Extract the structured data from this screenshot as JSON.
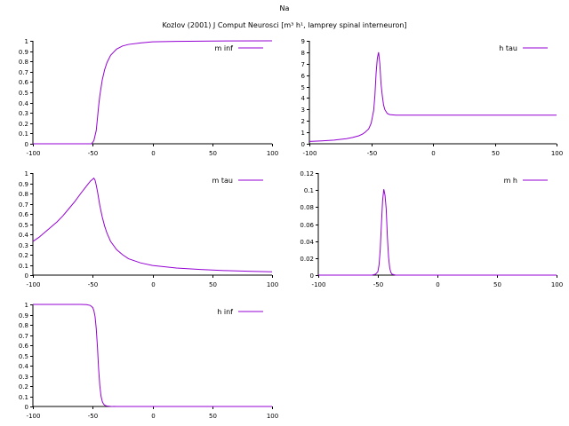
{
  "figure": {
    "title": "Na",
    "subtitle": "Kozlov (2001) J Comput Neurosci [m³ h¹, lamprey spinal interneuron]",
    "line_color": "#9400d3"
  },
  "chart_data": [
    {
      "type": "line",
      "series": [
        {
          "name": "m inf"
        }
      ],
      "xlim": [
        -100,
        100
      ],
      "ylim": [
        0,
        1
      ],
      "xticks": [
        -100,
        -50,
        0,
        50,
        100
      ],
      "yticks": [
        0,
        0.1,
        0.2,
        0.3,
        0.4,
        0.5,
        0.6,
        0.7,
        0.8,
        0.9,
        1
      ],
      "x": [
        -100,
        -55,
        -51,
        -49,
        -47,
        -45,
        -44,
        -42,
        -40,
        -38,
        -35,
        -30,
        -25,
        -20,
        -10,
        0,
        20,
        50,
        100
      ],
      "y": [
        0,
        0,
        0,
        0.03,
        0.13,
        0.37,
        0.47,
        0.62,
        0.72,
        0.79,
        0.86,
        0.92,
        0.95,
        0.965,
        0.98,
        0.99,
        0.995,
        0.998,
        1
      ]
    },
    {
      "type": "line",
      "series": [
        {
          "name": "h tau"
        }
      ],
      "xlim": [
        -100,
        100
      ],
      "ylim": [
        0,
        9
      ],
      "xticks": [
        -100,
        -50,
        0,
        50,
        100
      ],
      "yticks": [
        0,
        1,
        2,
        3,
        4,
        5,
        6,
        7,
        8,
        9
      ],
      "x": [
        -100,
        -90,
        -80,
        -70,
        -65,
        -60,
        -57,
        -55,
        -52,
        -50,
        -48,
        -47,
        -46,
        -45,
        -44,
        -43,
        -42,
        -41,
        -40,
        -39,
        -37,
        -35,
        -30,
        -20,
        0,
        50,
        100
      ],
      "y": [
        0.2,
        0.25,
        0.32,
        0.45,
        0.55,
        0.7,
        0.85,
        1.0,
        1.3,
        1.8,
        2.9,
        4.2,
        6.2,
        7.5,
        8.0,
        7.0,
        5.2,
        4.2,
        3.4,
        3.0,
        2.65,
        2.55,
        2.5,
        2.5,
        2.5,
        2.5,
        2.5
      ]
    },
    {
      "type": "line",
      "series": [
        {
          "name": "m tau"
        }
      ],
      "xlim": [
        -100,
        100
      ],
      "ylim": [
        0,
        1
      ],
      "xticks": [
        -100,
        -50,
        0,
        50,
        100
      ],
      "yticks": [
        0,
        0.1,
        0.2,
        0.3,
        0.4,
        0.5,
        0.6,
        0.7,
        0.8,
        0.9,
        1
      ],
      "x": [
        -100,
        -95,
        -90,
        -85,
        -80,
        -75,
        -70,
        -65,
        -60,
        -56,
        -52,
        -49,
        -48,
        -47,
        -46,
        -45,
        -44,
        -42,
        -40,
        -38,
        -35,
        -30,
        -25,
        -20,
        -10,
        0,
        20,
        40,
        60,
        80,
        100
      ],
      "y": [
        0.33,
        0.37,
        0.42,
        0.47,
        0.52,
        0.58,
        0.65,
        0.72,
        0.8,
        0.86,
        0.92,
        0.95,
        0.93,
        0.88,
        0.82,
        0.75,
        0.68,
        0.57,
        0.48,
        0.41,
        0.33,
        0.25,
        0.2,
        0.16,
        0.12,
        0.095,
        0.07,
        0.055,
        0.045,
        0.038,
        0.033
      ]
    },
    {
      "type": "line",
      "series": [
        {
          "name": "m h"
        }
      ],
      "xlim": [
        -100,
        100
      ],
      "ylim": [
        0,
        0.12
      ],
      "xticks": [
        -100,
        -50,
        0,
        50,
        100
      ],
      "yticks": [
        0,
        0.02,
        0.04,
        0.06,
        0.08,
        0.1,
        0.12
      ],
      "x": [
        -100,
        -55,
        -52,
        -50,
        -49,
        -48,
        -47,
        -46,
        -45,
        -44,
        -43,
        -42,
        -41,
        -40,
        -39,
        -38,
        -35,
        -30,
        0,
        100
      ],
      "y": [
        0,
        0,
        0.001,
        0.004,
        0.012,
        0.03,
        0.06,
        0.088,
        0.101,
        0.094,
        0.078,
        0.045,
        0.021,
        0.008,
        0.003,
        0.001,
        0,
        0,
        0,
        0
      ]
    },
    {
      "type": "line",
      "series": [
        {
          "name": "h inf"
        }
      ],
      "xlim": [
        -100,
        100
      ],
      "ylim": [
        0,
        1
      ],
      "xticks": [
        -100,
        -50,
        0,
        50,
        100
      ],
      "yticks": [
        0,
        0.1,
        0.2,
        0.3,
        0.4,
        0.5,
        0.6,
        0.7,
        0.8,
        0.9,
        1
      ],
      "x": [
        -100,
        -60,
        -55,
        -52,
        -50,
        -49,
        -48,
        -47,
        -46,
        -45,
        -44,
        -43,
        -42,
        -41,
        -40,
        -38,
        -35,
        -30,
        0,
        100
      ],
      "y": [
        1,
        1,
        0.998,
        0.99,
        0.97,
        0.94,
        0.88,
        0.76,
        0.58,
        0.36,
        0.2,
        0.1,
        0.05,
        0.025,
        0.012,
        0.004,
        0.001,
        0,
        0,
        0
      ]
    }
  ]
}
